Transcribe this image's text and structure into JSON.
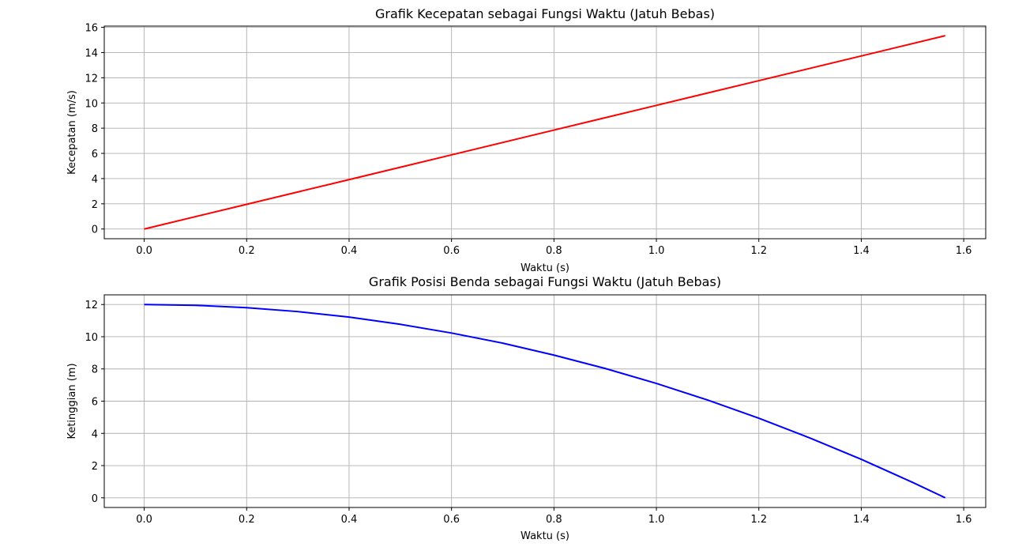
{
  "chart_data": [
    {
      "type": "line",
      "title": "Grafik Kecepatan sebagai Fungsi Waktu (Jatuh Bebas)",
      "xlabel": "Waktu (s)",
      "ylabel": "Kecepatan (m/s)",
      "xlim": [
        -0.078,
        1.643
      ],
      "ylim": [
        -0.77,
        16.1
      ],
      "xticks": [
        0.0,
        0.2,
        0.4,
        0.6,
        0.8,
        1.0,
        1.2,
        1.4,
        1.6
      ],
      "xtick_labels": [
        "0.0",
        "0.2",
        "0.4",
        "0.6",
        "0.8",
        "1.0",
        "1.2",
        "1.4",
        "1.6"
      ],
      "yticks": [
        0,
        2,
        4,
        6,
        8,
        10,
        12,
        14,
        16
      ],
      "ytick_labels": [
        "0",
        "2",
        "4",
        "6",
        "8",
        "10",
        "12",
        "14",
        "16"
      ],
      "grid": true,
      "series": [
        {
          "color": "#ff0000",
          "x": [
            0.0,
            0.2,
            0.4,
            0.6,
            0.8,
            1.0,
            1.2,
            1.4,
            1.564
          ],
          "y": [
            0.0,
            1.96,
            3.92,
            5.88,
            7.85,
            9.81,
            11.77,
            13.73,
            15.34
          ]
        }
      ]
    },
    {
      "type": "line",
      "title": "Grafik Posisi Benda sebagai Fungsi Waktu (Jatuh Bebas)",
      "xlabel": "Waktu (s)",
      "ylabel": "Ketinggian (m)",
      "xlim": [
        -0.078,
        1.643
      ],
      "ylim": [
        -0.6,
        12.6
      ],
      "xticks": [
        0.0,
        0.2,
        0.4,
        0.6,
        0.8,
        1.0,
        1.2,
        1.4,
        1.6
      ],
      "xtick_labels": [
        "0.0",
        "0.2",
        "0.4",
        "0.6",
        "0.8",
        "1.0",
        "1.2",
        "1.4",
        "1.6"
      ],
      "yticks": [
        0,
        2,
        4,
        6,
        8,
        10,
        12
      ],
      "ytick_labels": [
        "0",
        "2",
        "4",
        "6",
        "8",
        "10",
        "12"
      ],
      "grid": true,
      "series": [
        {
          "color": "#0000ff",
          "x": [
            0.0,
            0.1,
            0.2,
            0.3,
            0.4,
            0.5,
            0.6,
            0.7,
            0.8,
            0.9,
            1.0,
            1.1,
            1.2,
            1.3,
            1.4,
            1.5,
            1.564
          ],
          "y": [
            12.0,
            11.95,
            11.8,
            11.56,
            11.22,
            10.77,
            10.23,
            9.6,
            8.86,
            8.03,
            7.1,
            6.07,
            4.94,
            3.71,
            2.39,
            0.96,
            0.0
          ]
        }
      ]
    }
  ]
}
